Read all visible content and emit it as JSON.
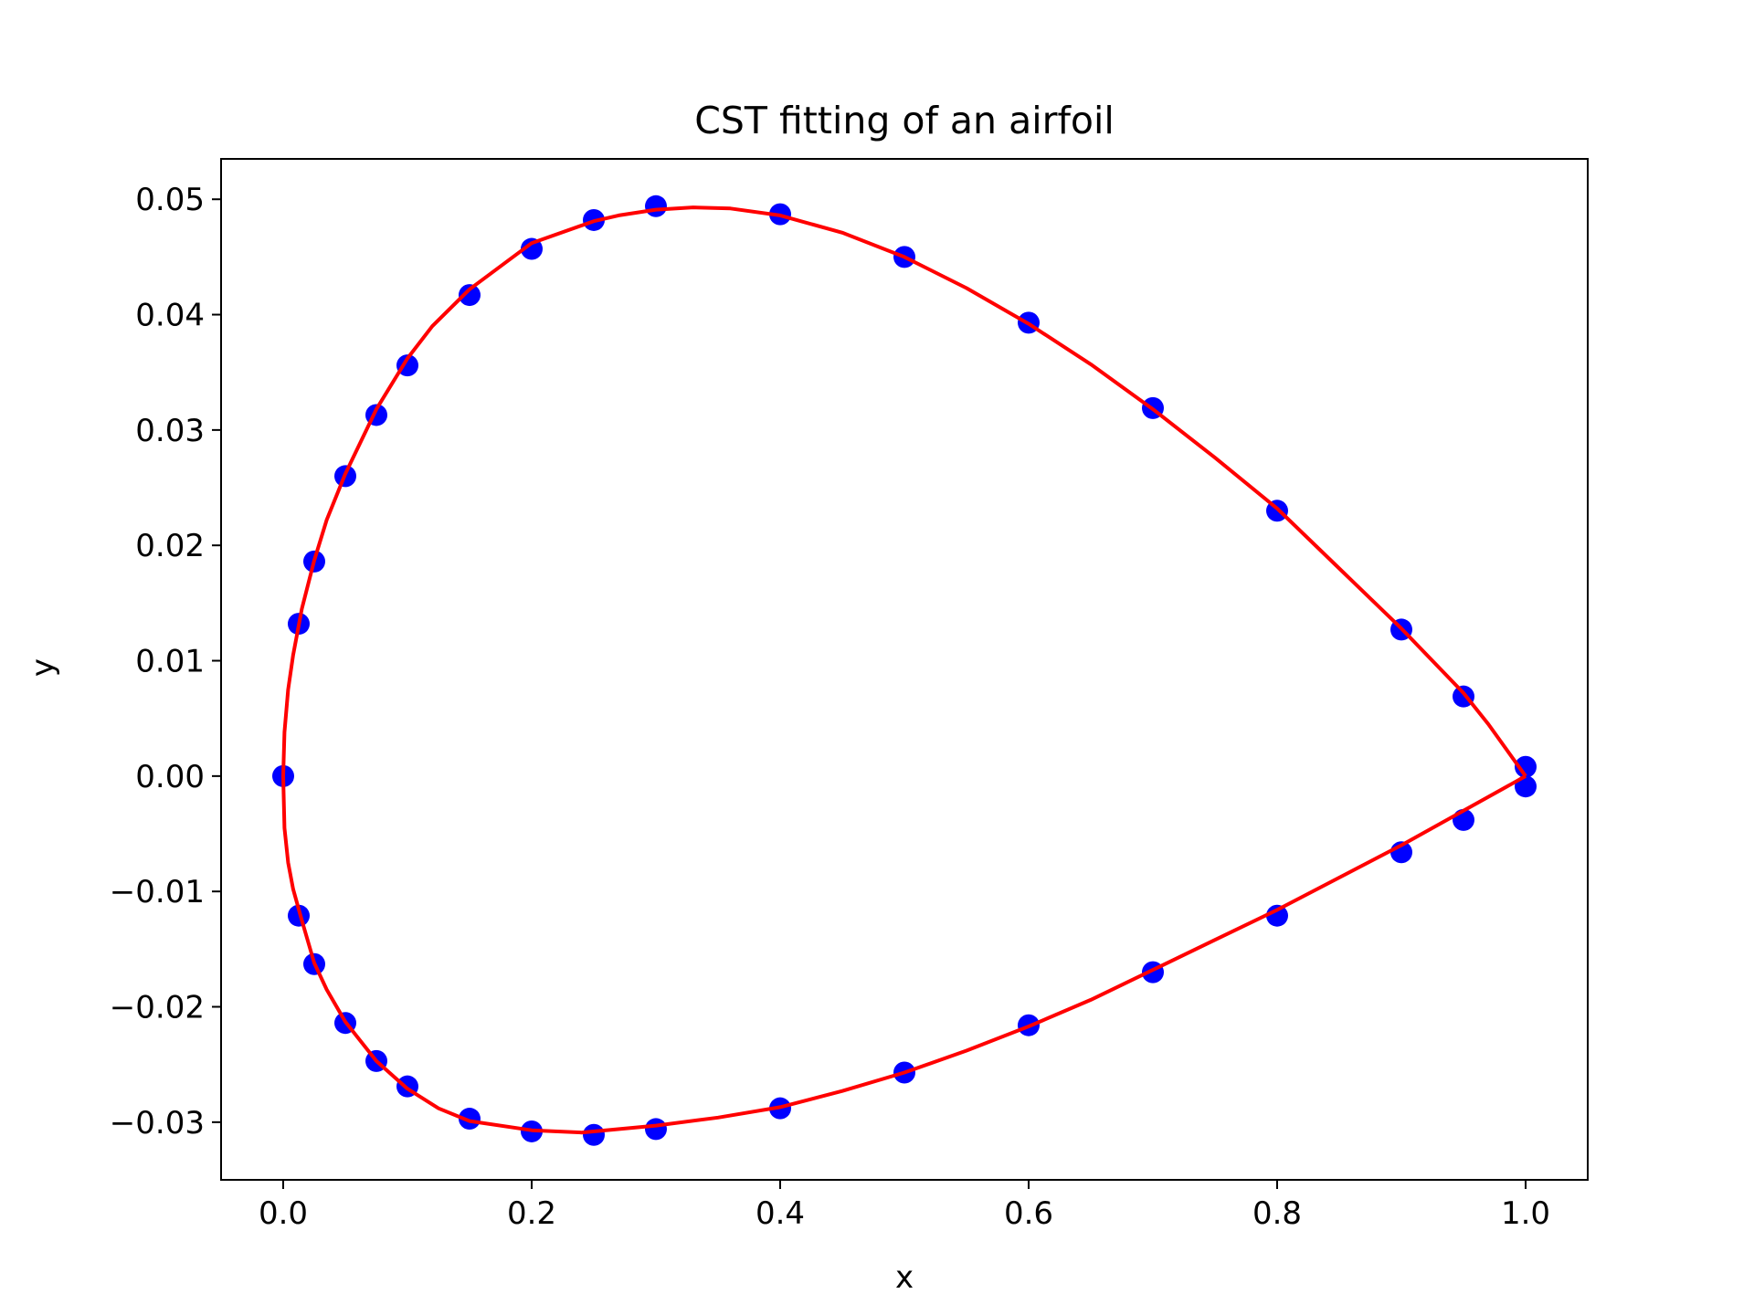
{
  "chart_data": {
    "type": "scatter",
    "title": "CST fitting of an airfoil",
    "xlabel": "x",
    "ylabel": "y",
    "xlim": [
      -0.05,
      1.05
    ],
    "ylim": [
      -0.035,
      0.0535
    ],
    "xticks": [
      0.0,
      0.2,
      0.4,
      0.6,
      0.8,
      1.0
    ],
    "xtick_labels": [
      "0.0",
      "0.2",
      "0.4",
      "0.6",
      "0.8",
      "1.0"
    ],
    "yticks": [
      -0.03,
      -0.02,
      -0.01,
      0.0,
      0.01,
      0.02,
      0.03,
      0.04,
      0.05
    ],
    "ytick_labels": [
      "−0.03",
      "−0.02",
      "−0.01",
      "0.00",
      "0.01",
      "0.02",
      "0.03",
      "0.04",
      "0.05"
    ],
    "grid": false,
    "series": [
      {
        "kind": "scatter",
        "color": "#0000ff",
        "x": [
          1.0,
          0.95,
          0.9,
          0.8,
          0.7,
          0.6,
          0.5,
          0.4,
          0.3,
          0.25,
          0.2,
          0.15,
          0.1,
          0.075,
          0.05,
          0.025,
          0.0125,
          0.0,
          0.0125,
          0.025,
          0.05,
          0.075,
          0.1,
          0.15,
          0.2,
          0.25,
          0.3,
          0.4,
          0.5,
          0.6,
          0.7,
          0.8,
          0.9,
          0.95,
          1.0
        ],
        "y": [
          0.0008,
          0.0069,
          0.0127,
          0.023,
          0.0319,
          0.0393,
          0.045,
          0.0487,
          0.0494,
          0.0482,
          0.0457,
          0.0417,
          0.0356,
          0.0313,
          0.026,
          0.0186,
          0.0132,
          0.0,
          -0.0121,
          -0.0163,
          -0.0214,
          -0.0247,
          -0.0269,
          -0.0297,
          -0.0308,
          -0.0311,
          -0.0306,
          -0.0288,
          -0.0257,
          -0.0216,
          -0.017,
          -0.0121,
          -0.0066,
          -0.0038,
          -0.0009
        ]
      },
      {
        "kind": "line",
        "color": "#ff0000",
        "x": [
          1.0,
          0.97,
          0.95,
          0.9,
          0.85,
          0.8,
          0.75,
          0.7,
          0.65,
          0.6,
          0.55,
          0.5,
          0.45,
          0.4,
          0.36,
          0.33,
          0.3,
          0.27,
          0.25,
          0.2,
          0.15,
          0.12,
          0.1,
          0.075,
          0.05,
          0.035,
          0.025,
          0.015,
          0.008,
          0.004,
          0.001,
          0.0,
          0.001,
          0.004,
          0.008,
          0.015,
          0.025,
          0.035,
          0.05,
          0.075,
          0.1,
          0.125,
          0.15,
          0.2,
          0.24,
          0.3,
          0.35,
          0.4,
          0.45,
          0.5,
          0.55,
          0.6,
          0.65,
          0.7,
          0.75,
          0.8,
          0.85,
          0.9,
          0.95,
          1.0
        ],
        "y": [
          0.0,
          0.0045,
          0.0072,
          0.0128,
          0.018,
          0.0232,
          0.0276,
          0.0318,
          0.0357,
          0.0392,
          0.0423,
          0.045,
          0.0471,
          0.0486,
          0.0492,
          0.0493,
          0.0491,
          0.0486,
          0.0481,
          0.0462,
          0.0422,
          0.039,
          0.0362,
          0.0318,
          0.0262,
          0.0222,
          0.0187,
          0.0145,
          0.0105,
          0.0075,
          0.0038,
          0.0,
          -0.0045,
          -0.0075,
          -0.0098,
          -0.0125,
          -0.0162,
          -0.0185,
          -0.0213,
          -0.0247,
          -0.0271,
          -0.0288,
          -0.0299,
          -0.0307,
          -0.0309,
          -0.0303,
          -0.0296,
          -0.0287,
          -0.0273,
          -0.0257,
          -0.0238,
          -0.0217,
          -0.0194,
          -0.0168,
          -0.0142,
          -0.0116,
          -0.0088,
          -0.006,
          -0.003,
          0.0
        ]
      }
    ]
  }
}
